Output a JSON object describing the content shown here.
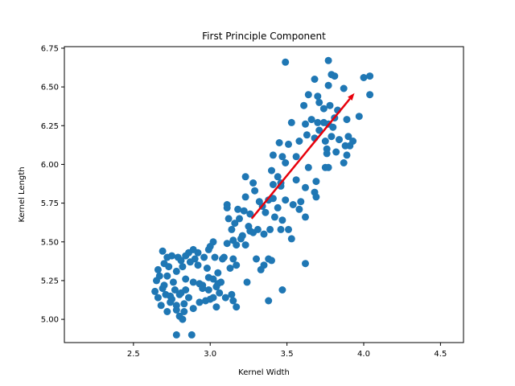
{
  "chart_data": {
    "type": "scatter",
    "title": "First Principle Component",
    "xlabel": "Kernel Width",
    "ylabel": "Kernel Length",
    "xlim": [
      2.05,
      4.65
    ],
    "ylim": [
      4.85,
      6.76
    ],
    "x_ticks": [
      2.5,
      3.0,
      3.5,
      4.0,
      4.5
    ],
    "x_tick_labels": [
      "2.5",
      "3.0",
      "3.5",
      "4.0",
      "4.5"
    ],
    "y_ticks": [
      5.0,
      5.25,
      5.5,
      5.75,
      6.0,
      6.25,
      6.5,
      6.75
    ],
    "y_tick_labels": [
      "5.00",
      "5.25",
      "5.50",
      "5.75",
      "6.00",
      "6.25",
      "6.50",
      "6.75"
    ],
    "grid": false,
    "point_color": "#1f77b4",
    "arrow_color": "#e8000b",
    "arrow": {
      "x0": 3.27,
      "y0": 5.65,
      "x1": 3.94,
      "y1": 6.46
    },
    "points": [
      [
        3.49,
        6.66
      ],
      [
        3.77,
        6.67
      ],
      [
        3.64,
        6.45
      ],
      [
        3.71,
        6.4
      ],
      [
        3.79,
        6.58
      ],
      [
        3.81,
        6.57
      ],
      [
        3.68,
        6.55
      ],
      [
        3.77,
        6.51
      ],
      [
        3.87,
        6.49
      ],
      [
        4.0,
        6.56
      ],
      [
        4.04,
        6.57
      ],
      [
        4.04,
        6.45
      ],
      [
        3.61,
        6.38
      ],
      [
        3.7,
        6.44
      ],
      [
        3.74,
        6.36
      ],
      [
        3.78,
        6.38
      ],
      [
        3.81,
        6.3
      ],
      [
        3.83,
        6.35
      ],
      [
        3.89,
        6.29
      ],
      [
        3.97,
        6.31
      ],
      [
        3.53,
        6.27
      ],
      [
        3.62,
        6.26
      ],
      [
        3.66,
        6.29
      ],
      [
        3.7,
        6.27
      ],
      [
        3.74,
        6.27
      ],
      [
        3.77,
        6.26
      ],
      [
        3.8,
        6.24
      ],
      [
        3.71,
        6.22
      ],
      [
        3.63,
        6.19
      ],
      [
        3.68,
        6.17
      ],
      [
        3.75,
        6.15
      ],
      [
        3.79,
        6.18
      ],
      [
        3.84,
        6.16
      ],
      [
        3.9,
        6.18
      ],
      [
        3.93,
        6.15
      ],
      [
        3.45,
        6.14
      ],
      [
        3.51,
        6.13
      ],
      [
        3.58,
        6.15
      ],
      [
        3.76,
        6.1
      ],
      [
        3.82,
        6.08
      ],
      [
        3.88,
        6.12
      ],
      [
        3.91,
        6.12
      ],
      [
        3.41,
        6.06
      ],
      [
        3.47,
        6.05
      ],
      [
        3.56,
        6.05
      ],
      [
        3.76,
        6.07
      ],
      [
        3.89,
        6.06
      ],
      [
        3.49,
        6.01
      ],
      [
        3.64,
        5.98
      ],
      [
        3.75,
        5.98
      ],
      [
        3.77,
        5.98
      ],
      [
        3.87,
        6.01
      ],
      [
        3.4,
        5.96
      ],
      [
        3.44,
        5.92
      ],
      [
        3.46,
        5.88
      ],
      [
        3.56,
        5.9
      ],
      [
        3.69,
        5.89
      ],
      [
        3.23,
        5.92
      ],
      [
        3.28,
        5.88
      ],
      [
        3.41,
        5.87
      ],
      [
        3.46,
        5.86
      ],
      [
        3.62,
        5.85
      ],
      [
        3.68,
        5.82
      ],
      [
        3.29,
        5.83
      ],
      [
        3.32,
        5.76
      ],
      [
        3.38,
        5.77
      ],
      [
        3.41,
        5.78
      ],
      [
        3.49,
        5.77
      ],
      [
        3.23,
        5.79
      ],
      [
        3.11,
        5.74
      ],
      [
        3.11,
        5.72
      ],
      [
        3.18,
        5.71
      ],
      [
        3.22,
        5.7
      ],
      [
        3.34,
        5.73
      ],
      [
        3.44,
        5.72
      ],
      [
        3.54,
        5.74
      ],
      [
        3.59,
        5.76
      ],
      [
        3.69,
        5.79
      ],
      [
        3.26,
        5.68
      ],
      [
        3.36,
        5.69
      ],
      [
        3.12,
        5.65
      ],
      [
        3.16,
        5.62
      ],
      [
        3.19,
        5.65
      ],
      [
        3.25,
        5.6
      ],
      [
        3.42,
        5.66
      ],
      [
        3.47,
        5.64
      ],
      [
        3.58,
        5.71
      ],
      [
        3.62,
        5.66
      ],
      [
        3.14,
        5.58
      ],
      [
        3.21,
        5.54
      ],
      [
        3.26,
        5.57
      ],
      [
        3.31,
        5.58
      ],
      [
        3.39,
        5.58
      ],
      [
        3.46,
        5.58
      ],
      [
        3.51,
        5.58
      ],
      [
        3.15,
        5.51
      ],
      [
        3.2,
        5.52
      ],
      [
        3.28,
        5.56
      ],
      [
        3.35,
        5.55
      ],
      [
        3.53,
        5.52
      ],
      [
        3.02,
        5.5
      ],
      [
        3.11,
        5.49
      ],
      [
        3.17,
        5.48
      ],
      [
        3.23,
        5.48
      ],
      [
        3.0,
        5.47
      ],
      [
        2.99,
        5.45
      ],
      [
        2.92,
        5.43
      ],
      [
        2.89,
        5.45
      ],
      [
        2.84,
        5.41
      ],
      [
        2.81,
        5.38
      ],
      [
        2.86,
        5.43
      ],
      [
        2.75,
        5.41
      ],
      [
        2.69,
        5.44
      ],
      [
        2.72,
        5.4
      ],
      [
        2.79,
        5.4
      ],
      [
        2.9,
        5.39
      ],
      [
        2.96,
        5.4
      ],
      [
        3.03,
        5.4
      ],
      [
        3.09,
        5.4
      ],
      [
        3.15,
        5.39
      ],
      [
        3.17,
        5.35
      ],
      [
        3.13,
        5.33
      ],
      [
        3.3,
        5.39
      ],
      [
        3.35,
        5.35
      ],
      [
        3.38,
        5.39
      ],
      [
        3.4,
        5.38
      ],
      [
        3.62,
        5.36
      ],
      [
        2.66,
        5.32
      ],
      [
        2.7,
        5.36
      ],
      [
        2.73,
        5.34
      ],
      [
        2.78,
        5.31
      ],
      [
        2.82,
        5.34
      ],
      [
        2.87,
        5.37
      ],
      [
        2.92,
        5.35
      ],
      [
        2.98,
        5.33
      ],
      [
        3.05,
        5.3
      ],
      [
        3.33,
        5.32
      ],
      [
        2.67,
        5.28
      ],
      [
        2.72,
        5.28
      ],
      [
        2.76,
        5.24
      ],
      [
        2.84,
        5.26
      ],
      [
        2.89,
        5.24
      ],
      [
        2.93,
        5.23
      ],
      [
        2.99,
        5.27
      ],
      [
        3.02,
        5.26
      ],
      [
        3.07,
        5.24
      ],
      [
        3.24,
        5.24
      ],
      [
        2.65,
        5.25
      ],
      [
        2.7,
        5.22
      ],
      [
        2.64,
        5.18
      ],
      [
        2.69,
        5.2
      ],
      [
        2.77,
        5.19
      ],
      [
        2.81,
        5.17
      ],
      [
        2.84,
        5.19
      ],
      [
        2.99,
        5.19
      ],
      [
        3.04,
        5.21
      ],
      [
        3.05,
        5.23
      ],
      [
        3.47,
        5.19
      ],
      [
        2.66,
        5.14
      ],
      [
        2.71,
        5.16
      ],
      [
        2.74,
        5.15
      ],
      [
        2.8,
        5.16
      ],
      [
        2.86,
        5.14
      ],
      [
        2.97,
        5.12
      ],
      [
        3.02,
        5.14
      ],
      [
        3.14,
        5.16
      ],
      [
        2.68,
        5.09
      ],
      [
        2.74,
        5.11
      ],
      [
        2.78,
        5.09
      ],
      [
        2.83,
        5.1
      ],
      [
        2.93,
        5.11
      ],
      [
        3.0,
        5.13
      ],
      [
        3.15,
        5.12
      ],
      [
        3.38,
        5.12
      ],
      [
        2.72,
        5.05
      ],
      [
        2.78,
        5.06
      ],
      [
        2.83,
        5.05
      ],
      [
        2.89,
        5.07
      ],
      [
        3.04,
        5.08
      ],
      [
        3.17,
        5.08
      ],
      [
        2.8,
        5.02
      ],
      [
        2.82,
        5.0
      ],
      [
        2.78,
        4.9
      ],
      [
        2.88,
        4.9
      ],
      [
        2.75,
        5.13
      ],
      [
        2.95,
        5.2
      ],
      [
        3.08,
        5.39
      ],
      [
        2.95,
        5.22
      ],
      [
        3.06,
        5.17
      ],
      [
        3.1,
        5.14
      ]
    ]
  }
}
